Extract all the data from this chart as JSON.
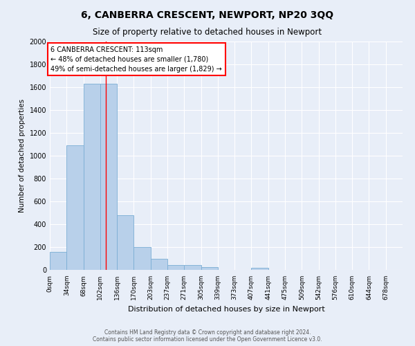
{
  "title": "6, CANBERRA CRESCENT, NEWPORT, NP20 3QQ",
  "subtitle": "Size of property relative to detached houses in Newport",
  "xlabel": "Distribution of detached houses by size in Newport",
  "ylabel": "Number of detached properties",
  "bar_labels": [
    "0sqm",
    "34sqm",
    "68sqm",
    "102sqm",
    "136sqm",
    "170sqm",
    "203sqm",
    "237sqm",
    "271sqm",
    "305sqm",
    "339sqm",
    "373sqm",
    "407sqm",
    "441sqm",
    "475sqm",
    "509sqm",
    "542sqm",
    "576sqm",
    "610sqm",
    "644sqm",
    "678sqm"
  ],
  "bar_values": [
    160,
    1090,
    1630,
    1630,
    480,
    200,
    100,
    45,
    40,
    25,
    0,
    0,
    20,
    0,
    0,
    0,
    0,
    0,
    0,
    0,
    0
  ],
  "bar_color": "#b8d0ea",
  "bar_edge_color": "#7aadd4",
  "background_color": "#e8eef8",
  "grid_color": "#ffffff",
  "ylim": [
    0,
    2000
  ],
  "red_line_x": 113,
  "bin_width": 34,
  "annotation_title": "6 CANBERRA CRESCENT: 113sqm",
  "annotation_line1": "← 48% of detached houses are smaller (1,780)",
  "annotation_line2": "49% of semi-detached houses are larger (1,829) →",
  "footer_line1": "Contains HM Land Registry data © Crown copyright and database right 2024.",
  "footer_line2": "Contains public sector information licensed under the Open Government Licence v3.0.",
  "title_fontsize": 10,
  "subtitle_fontsize": 8.5,
  "xlabel_fontsize": 8,
  "ylabel_fontsize": 7.5,
  "annotation_fontsize": 7,
  "tick_fontsize": 6.5,
  "footer_fontsize": 5.5
}
